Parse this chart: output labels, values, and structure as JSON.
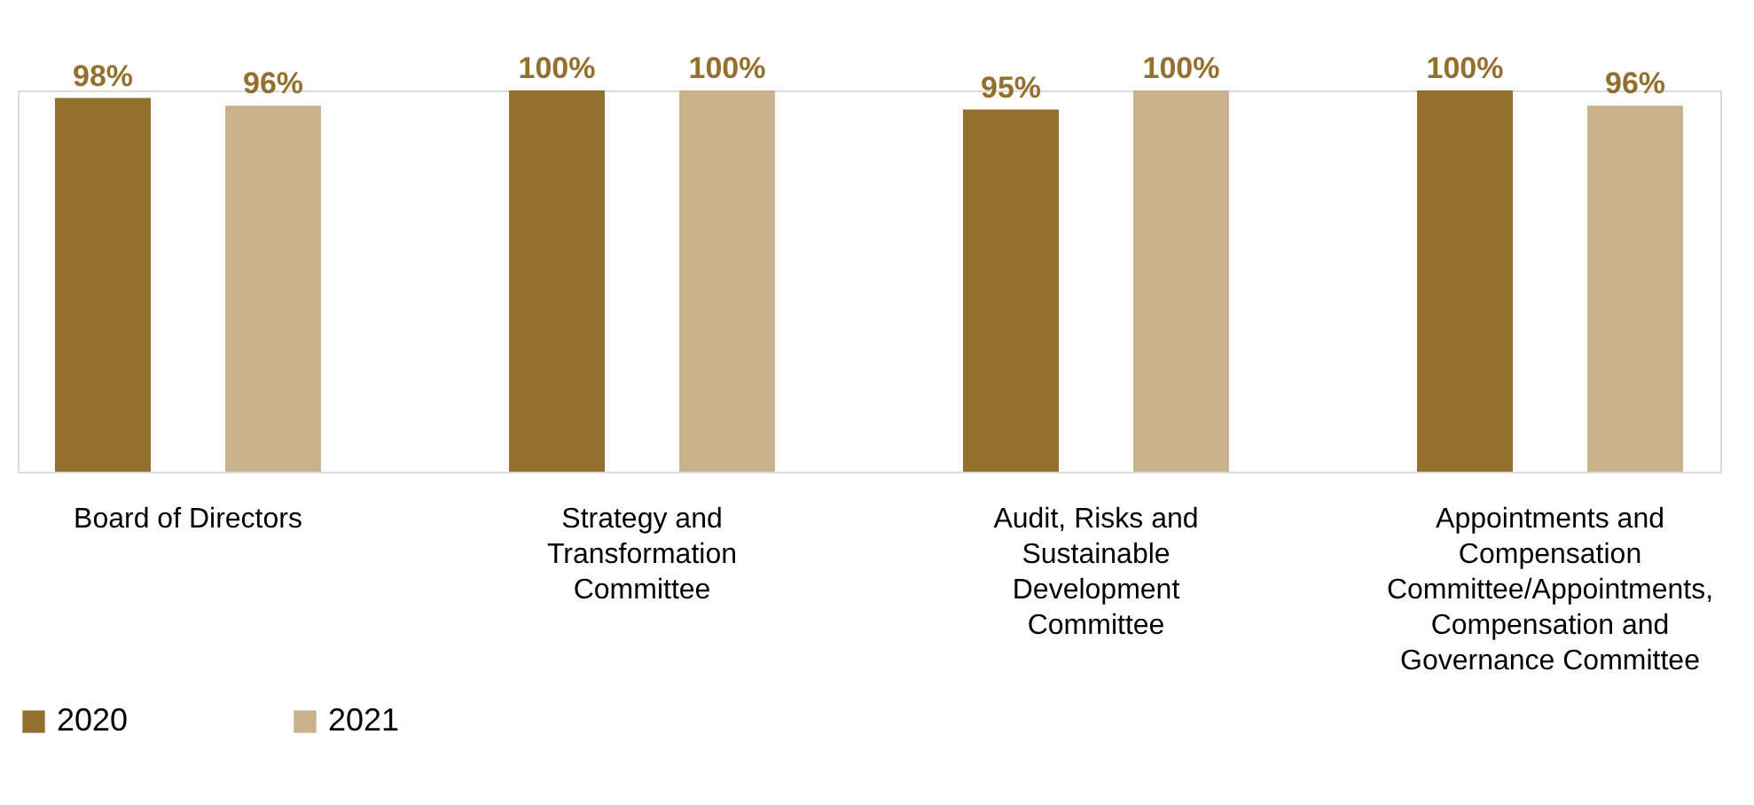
{
  "chart_data": {
    "type": "bar",
    "categories": [
      "Board of Directors",
      "Strategy and Transformation Committee",
      "Audit, Risks and Sustainable Development Committee",
      "Appointments and Compensation Committee/Appointments, Compensation and Governance Committee"
    ],
    "series": [
      {
        "name": "2020",
        "color": "#94702e",
        "values": [
          98,
          100,
          95,
          100
        ],
        "value_labels": [
          "98%",
          "100%",
          "95%",
          "100%"
        ]
      },
      {
        "name": "2021",
        "color": "#c8b28c",
        "values": [
          96,
          100,
          100,
          96
        ],
        "value_labels": [
          "96%",
          "100%",
          "100%",
          "96%"
        ]
      }
    ],
    "tick_labels": "x",
    "legend": "bottom",
    "grid": false
  }
}
